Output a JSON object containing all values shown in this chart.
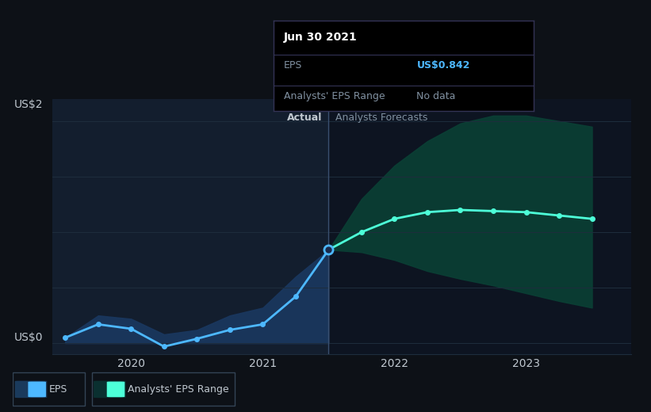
{
  "bg_color": "#0d1117",
  "chart_bg_color": "#0d1421",
  "left_panel_color": "#111827",
  "grid_color": "#1e2d3d",
  "title": "earnings-per-share-growth",
  "ylim": [
    -0.1,
    2.2
  ],
  "xlim_start": 2019.4,
  "xlim_end": 2023.8,
  "xticks": [
    2020.0,
    2021.0,
    2022.0,
    2023.0
  ],
  "xtick_labels": [
    "2020",
    "2021",
    "2022",
    "2023"
  ],
  "ytick_labels": [
    "US$0",
    "US$2"
  ],
  "ytick_values": [
    0.0,
    2.0
  ],
  "divider_x": 2021.5,
  "actual_label": "Actual",
  "forecast_label": "Analysts Forecasts",
  "actual_line_color": "#4db8ff",
  "forecast_line_color": "#4dffd8",
  "eps_x": [
    2019.5,
    2019.75,
    2020.0,
    2020.25,
    2020.5,
    2020.75,
    2021.0,
    2021.25,
    2021.5
  ],
  "eps_y": [
    0.05,
    0.17,
    0.13,
    -0.03,
    0.04,
    0.12,
    0.17,
    0.42,
    0.842
  ],
  "forecast_x": [
    2021.5,
    2021.75,
    2022.0,
    2022.25,
    2022.5,
    2022.75,
    2023.0,
    2023.25,
    2023.5
  ],
  "forecast_y": [
    0.842,
    1.0,
    1.12,
    1.18,
    1.2,
    1.19,
    1.18,
    1.15,
    1.12
  ],
  "forecast_upper": [
    0.842,
    1.3,
    1.6,
    1.82,
    1.98,
    2.05,
    2.05,
    2.0,
    1.95
  ],
  "forecast_lower": [
    0.842,
    0.82,
    0.75,
    0.65,
    0.58,
    0.52,
    0.45,
    0.38,
    0.32
  ],
  "actual_range_upper": [
    0.05,
    0.25,
    0.22,
    0.08,
    0.12,
    0.25,
    0.32,
    0.6,
    0.842
  ],
  "actual_range_lower": [
    0.0,
    0.0,
    0.0,
    0.0,
    0.0,
    0.0,
    0.0,
    0.0,
    0.0
  ],
  "tooltip_x": 2021.5,
  "tooltip_y": 0.842,
  "tooltip_date": "Jun 30 2021",
  "tooltip_eps_label": "EPS",
  "tooltip_eps_value": "US$0.842",
  "tooltip_range_label": "Analysts' EPS Range",
  "tooltip_range_value": "No data",
  "legend_eps": "EPS",
  "legend_range": "Analysts' EPS Range",
  "text_color": "#c0c8d0",
  "text_color_dim": "#8090a0"
}
